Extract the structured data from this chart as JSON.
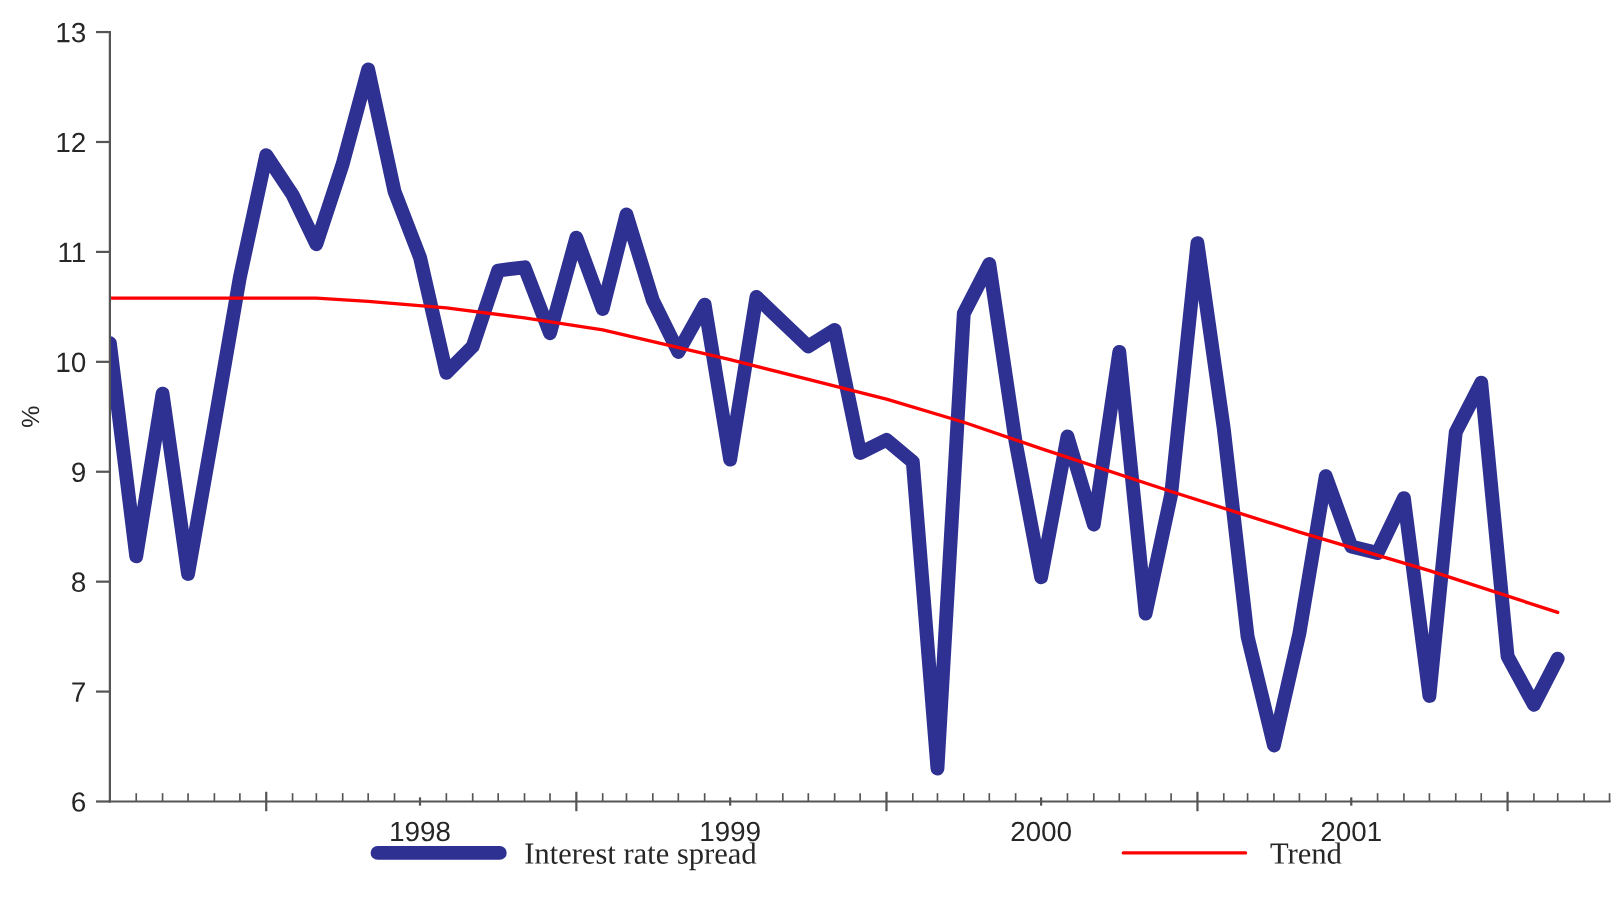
{
  "chart_data": {
    "type": "line",
    "ylabel": "%",
    "x": [
      "1997-07",
      "1997-08",
      "1997-09",
      "1997-10",
      "1997-11",
      "1997-12",
      "1998-01",
      "1998-02",
      "1998-03",
      "1998-04",
      "1998-05",
      "1998-06",
      "1998-07",
      "1998-08",
      "1998-09",
      "1998-10",
      "1998-11",
      "1998-12",
      "1999-01",
      "1999-02",
      "1999-03",
      "1999-04",
      "1999-05",
      "1999-06",
      "1999-07",
      "1999-08",
      "1999-09",
      "1999-10",
      "1999-11",
      "1999-12",
      "2000-01",
      "2000-02",
      "2000-03",
      "2000-04",
      "2000-05",
      "2000-06",
      "2000-07",
      "2000-08",
      "2000-09",
      "2000-10",
      "2000-11",
      "2000-12",
      "2001-01",
      "2001-02",
      "2001-03",
      "2001-04",
      "2001-05",
      "2001-06",
      "2001-07",
      "2001-08",
      "2001-09",
      "2001-10",
      "2001-11",
      "2001-12",
      "2002-01",
      "2002-02",
      "2002-03"
    ],
    "series": [
      {
        "name": "Interest rate spread",
        "color": "#2e3192",
        "values": [
          10.17,
          8.23,
          9.71,
          8.07,
          9.43,
          10.77,
          11.88,
          11.52,
          11.07,
          11.8,
          12.66,
          11.55,
          10.95,
          9.9,
          10.14,
          10.83,
          10.86,
          10.26,
          11.13,
          10.48,
          11.34,
          10.56,
          10.09,
          10.52,
          9.11,
          10.59,
          10.36,
          10.14,
          10.29,
          9.17,
          9.29,
          9.09,
          6.3,
          10.44,
          10.89,
          9.27,
          8.04,
          9.32,
          8.52,
          10.09,
          7.71,
          8.79,
          11.08,
          9.39,
          7.5,
          6.51,
          7.53,
          8.96,
          8.32,
          8.26,
          8.76,
          6.96,
          9.36,
          9.81,
          7.32,
          6.88,
          7.3
        ]
      },
      {
        "name": "Trend",
        "color": "#ff0000",
        "x": [
          "1997-07",
          "1998-03",
          "1998-05",
          "1998-08",
          "1998-11",
          "1999-02",
          "1999-07",
          "1999-10",
          "2000-01",
          "2000-04",
          "2000-07",
          "2000-12",
          "2001-05",
          "2001-10",
          "2002-03"
        ],
        "values": [
          10.58,
          10.58,
          10.55,
          10.49,
          10.4,
          10.29,
          10.02,
          9.84,
          9.66,
          9.45,
          9.21,
          8.82,
          8.45,
          8.1,
          7.72
        ]
      }
    ],
    "xlim": [
      "1997-07",
      "2002-05"
    ],
    "xticks": [
      {
        "value": "1998-01",
        "label": null
      },
      {
        "value": "1998-07",
        "label": "1998"
      },
      {
        "value": "1999-01",
        "label": null
      },
      {
        "value": "1999-07",
        "label": "1999"
      },
      {
        "value": "2000-01",
        "label": null
      },
      {
        "value": "2000-07",
        "label": "2000"
      },
      {
        "value": "2001-01",
        "label": null
      },
      {
        "value": "2001-07",
        "label": "2001"
      },
      {
        "value": "2002-01",
        "label": null
      }
    ],
    "ylim": [
      6,
      13
    ],
    "yticks": [
      6,
      7,
      8,
      9,
      10,
      11,
      12,
      13
    ],
    "grid": false,
    "legend": "bottom",
    "line_style": "solid",
    "marker": "none"
  }
}
